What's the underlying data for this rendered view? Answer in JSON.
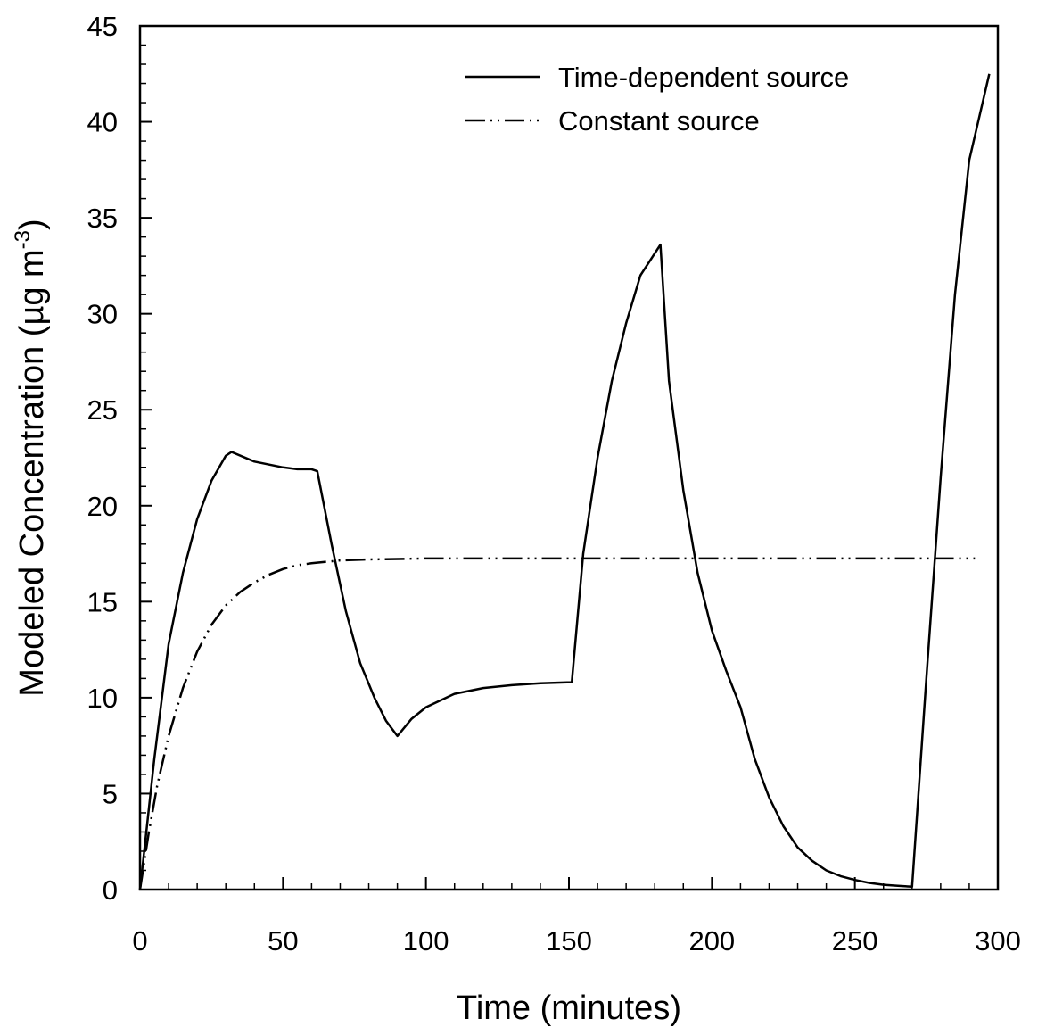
{
  "chart_data": {
    "type": "line",
    "xlabel": "Time (minutes)",
    "ylabel": "Modeled Concentration (µg m",
    "ylabel_superscript": "-3",
    "ylabel_close": ")",
    "xlim": [
      0,
      300
    ],
    "ylim": [
      0,
      45
    ],
    "x_ticks": [
      0,
      50,
      100,
      150,
      200,
      250,
      300
    ],
    "y_ticks": [
      0,
      5,
      10,
      15,
      20,
      25,
      30,
      35,
      40,
      45
    ],
    "grid": false,
    "legend_position": "top-right",
    "series": [
      {
        "name": "Time-dependent source",
        "line_style": "solid",
        "x": [
          0,
          5,
          10,
          15,
          20,
          25,
          30,
          32,
          40,
          50,
          55,
          60,
          62,
          67,
          72,
          77,
          82,
          86,
          90,
          95,
          100,
          110,
          120,
          130,
          140,
          150,
          151,
          155,
          160,
          165,
          170,
          175,
          182,
          185,
          190,
          195,
          200,
          205,
          210,
          215,
          220,
          225,
          230,
          235,
          240,
          245,
          250,
          255,
          260,
          265,
          270,
          275,
          280,
          285,
          290,
          297
        ],
        "y": [
          0,
          6.8,
          12.8,
          16.5,
          19.3,
          21.3,
          22.6,
          22.8,
          22.3,
          22.0,
          21.9,
          21.9,
          21.8,
          18.0,
          14.5,
          11.8,
          10.0,
          8.8,
          8.0,
          8.9,
          9.5,
          10.2,
          10.5,
          10.65,
          10.75,
          10.8,
          10.8,
          17.5,
          22.5,
          26.5,
          29.5,
          32.0,
          33.6,
          26.5,
          20.8,
          16.5,
          13.5,
          11.4,
          9.5,
          6.8,
          4.8,
          3.3,
          2.2,
          1.5,
          1.0,
          0.7,
          0.5,
          0.35,
          0.25,
          0.2,
          0.15,
          11.0,
          21.5,
          31.0,
          38.0,
          42.5
        ]
      },
      {
        "name": "Constant source",
        "line_style": "dash-dot-dot",
        "x": [
          0,
          3,
          6,
          10,
          15,
          20,
          25,
          30,
          35,
          40,
          45,
          50,
          55,
          60,
          70,
          80,
          100,
          120,
          150,
          200,
          250,
          292
        ],
        "y": [
          0,
          2.9,
          5.4,
          8.0,
          10.5,
          12.4,
          13.8,
          14.8,
          15.5,
          16.0,
          16.4,
          16.7,
          16.9,
          17.0,
          17.15,
          17.2,
          17.25,
          17.25,
          17.25,
          17.25,
          17.25,
          17.25
        ]
      }
    ]
  }
}
